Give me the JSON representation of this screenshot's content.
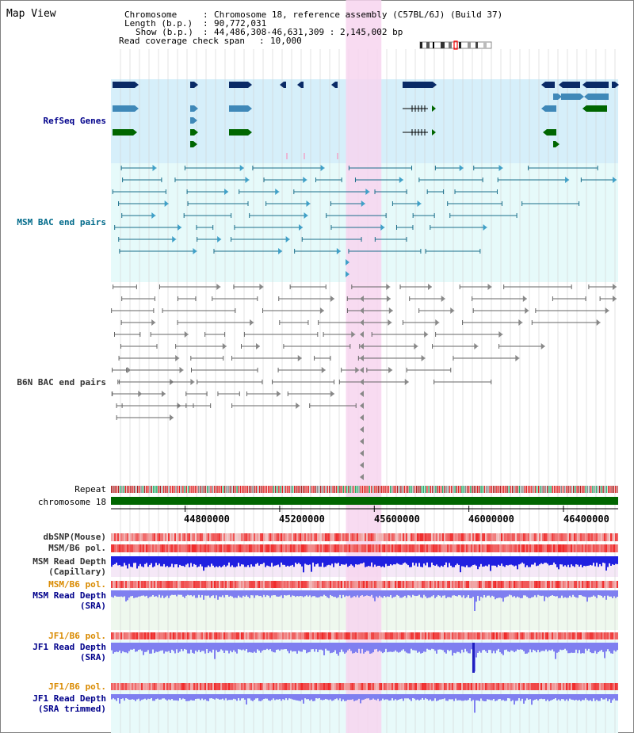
{
  "title": "Map View",
  "header": {
    "chromosome_label": "Chromosome",
    "chromosome_value": "Chromosome 18, reference assembly (C57BL/6J) (Build 37)",
    "length_label": "Length (b.p.)",
    "length_value": "90,772,031",
    "show_label": "Show (b.p.)",
    "show_value": "44,486,308-46,631,309 : 2,145,002 bp",
    "coverage_label": "Read coverage check span",
    "coverage_value": "10,000"
  },
  "tracks": {
    "refseq": "RefSeq Genes",
    "msm_bac": "MSM BAC end pairs",
    "b6n_bac": "B6N BAC end pairs",
    "repeat": "Repeat",
    "chromosome": "chromosome 18",
    "dbsnp": "dbSNP(Mouse)",
    "msm_b6_pol": "MSM/B6 pol.",
    "msm_depth_cap_1": "MSM Read Depth",
    "msm_depth_cap_2": "(Capillary)",
    "msm_b6_pol_2": "MSM/B6 pol.",
    "msm_depth_sra_1": "MSM Read Depth",
    "msm_depth_sra_2": "(SRA)",
    "jf1_b6_pol": "JF1/B6 pol.",
    "jf1_depth_sra_1": "JF1 Read Depth",
    "jf1_depth_sra_2": "(SRA)",
    "jf1_b6_pol_2": "JF1/B6 pol.",
    "jf1_depth_trim_1": "JF1 Read Depth",
    "jf1_depth_trim_2": "(SRA trimmed)"
  },
  "axis": {
    "ticks": [
      "44800000",
      "45200000",
      "45600000",
      "46000000",
      "46400000"
    ],
    "tick_values": [
      44800000,
      45200000,
      45600000,
      46000000,
      46400000
    ],
    "start": 44486308,
    "end": 46631309
  },
  "highlight": {
    "start": 45480000,
    "end": 45630000
  },
  "colors": {
    "refseq_bg": "#d6effa",
    "msm_bg": "#e6fafa",
    "highlight": "#f7d5ef",
    "gene_dark": "#0a2a66",
    "gene_mid": "#3f88b8",
    "gene_green": "#006600",
    "msm_line": "#1a6e8a",
    "b6n_line": "#666666",
    "chromosome": "#006600",
    "depth_blue": "#2020e0",
    "depth_light": "#7f7ff0",
    "pol_red": "#ee4444"
  }
}
